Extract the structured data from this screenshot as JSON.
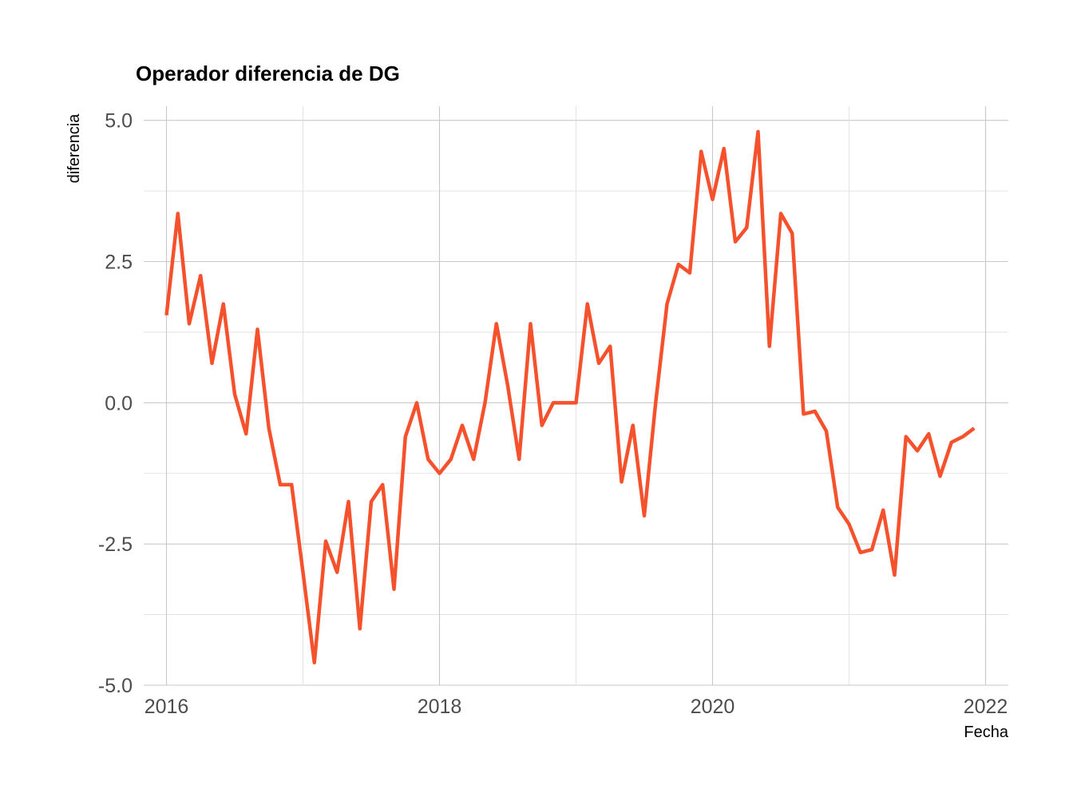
{
  "chart_data": {
    "type": "line",
    "title": "Operador diferencia de DG",
    "xlabel": "Fecha",
    "ylabel": "diferencia",
    "x_ticks": [
      "2016",
      "2018",
      "2020",
      "2022"
    ],
    "y_ticks": [
      "5.0",
      "2.5",
      "0.0",
      "-2.5",
      "-5.0"
    ],
    "xlim": [
      "2015-11-01",
      "2022-03-01"
    ],
    "ylim": [
      -5.0,
      5.25
    ],
    "grid": true,
    "legend": "none",
    "line_color": "#F4512C",
    "series": [
      {
        "x": [
          "2016-01",
          "2016-02",
          "2016-03",
          "2016-04",
          "2016-05",
          "2016-06",
          "2016-07",
          "2016-08",
          "2016-09",
          "2016-10",
          "2016-11",
          "2016-12",
          "2017-01",
          "2017-02",
          "2017-03",
          "2017-04",
          "2017-05",
          "2017-06",
          "2017-07",
          "2017-08",
          "2017-09",
          "2017-10",
          "2017-11",
          "2017-12",
          "2018-01",
          "2018-02",
          "2018-03",
          "2018-04",
          "2018-05",
          "2018-06",
          "2018-07",
          "2018-08",
          "2018-09",
          "2018-10",
          "2018-11",
          "2018-12",
          "2019-01",
          "2019-02",
          "2019-03",
          "2019-04",
          "2019-05",
          "2019-06",
          "2019-07",
          "2019-08",
          "2019-09",
          "2019-10",
          "2019-11",
          "2019-12",
          "2020-01",
          "2020-02",
          "2020-03",
          "2020-04",
          "2020-05",
          "2020-06",
          "2020-07",
          "2020-08",
          "2020-09",
          "2020-10",
          "2020-11",
          "2020-12",
          "2021-01",
          "2021-02",
          "2021-03",
          "2021-04",
          "2021-05",
          "2021-06",
          "2021-07",
          "2021-08",
          "2021-09",
          "2021-10",
          "2021-11",
          "2021-12"
        ],
        "values": [
          1.55,
          3.35,
          1.4,
          2.25,
          0.7,
          1.75,
          0.15,
          -0.55,
          1.3,
          -0.45,
          -1.45,
          -1.45,
          -3.0,
          -4.6,
          -2.45,
          -3.0,
          -1.75,
          -4.0,
          -1.75,
          -1.45,
          -3.3,
          -0.6,
          0.0,
          -1.0,
          -1.25,
          -1.0,
          -0.4,
          -1.0,
          0.0,
          1.4,
          0.3,
          -1.0,
          1.4,
          -0.4,
          0.0,
          0.0,
          0.0,
          1.75,
          0.7,
          1.0,
          -1.4,
          -0.4,
          -2.0,
          0.0,
          1.75,
          2.45,
          2.3,
          4.45,
          3.6,
          4.5,
          2.85,
          3.1,
          4.8,
          1.0,
          3.35,
          3.0,
          -0.2,
          -0.15,
          -0.5,
          -1.85,
          -2.15,
          -2.65,
          -2.6,
          -1.9,
          -3.05,
          -0.6,
          -0.85,
          -0.55,
          -1.3,
          -0.7,
          -0.6,
          -0.45
        ]
      }
    ]
  }
}
